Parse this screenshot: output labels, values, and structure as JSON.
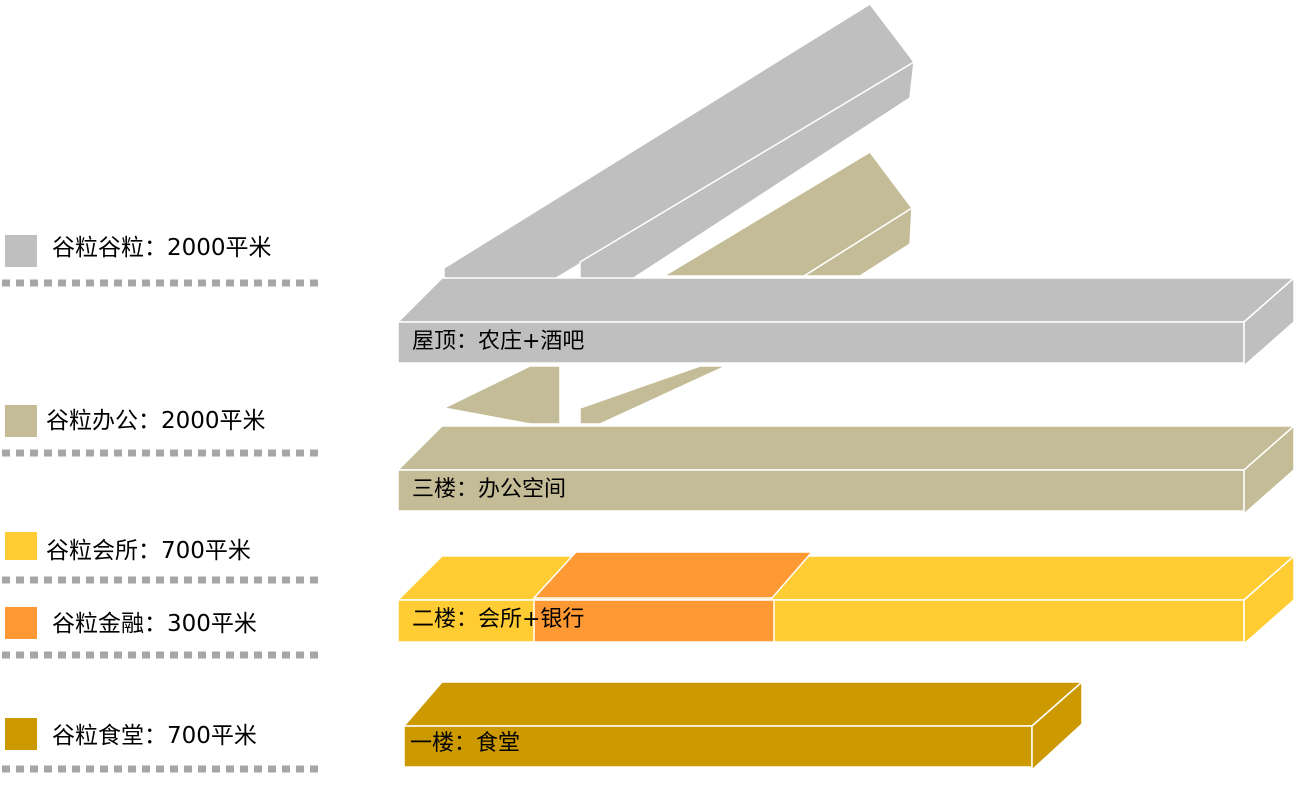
{
  "legend": [
    {
      "label": "谷粒谷粒：2000平米",
      "color": "#bfbfbf"
    },
    {
      "label": "谷粒办公：2000平米",
      "color": "#c4bc96"
    },
    {
      "label": "谷粒会所：700平米",
      "color": "#ffcc33"
    },
    {
      "label": "谷粒金融：300平米",
      "color": "#ff9933"
    },
    {
      "label": "谷粒食堂：700平米",
      "color": "#cc9900"
    }
  ],
  "floors": [
    {
      "label": "屋顶：农庄+酒吧",
      "color": "#bfbfbf"
    },
    {
      "label": "三楼：办公空间",
      "color": "#c4bc96"
    },
    {
      "label": "二楼：会所+银行",
      "color": "#ffcc33",
      "insert_color": "#ff9933"
    },
    {
      "label": "一楼：食堂",
      "color": "#cc9900"
    }
  ],
  "divider_color": "#a6a6a6"
}
